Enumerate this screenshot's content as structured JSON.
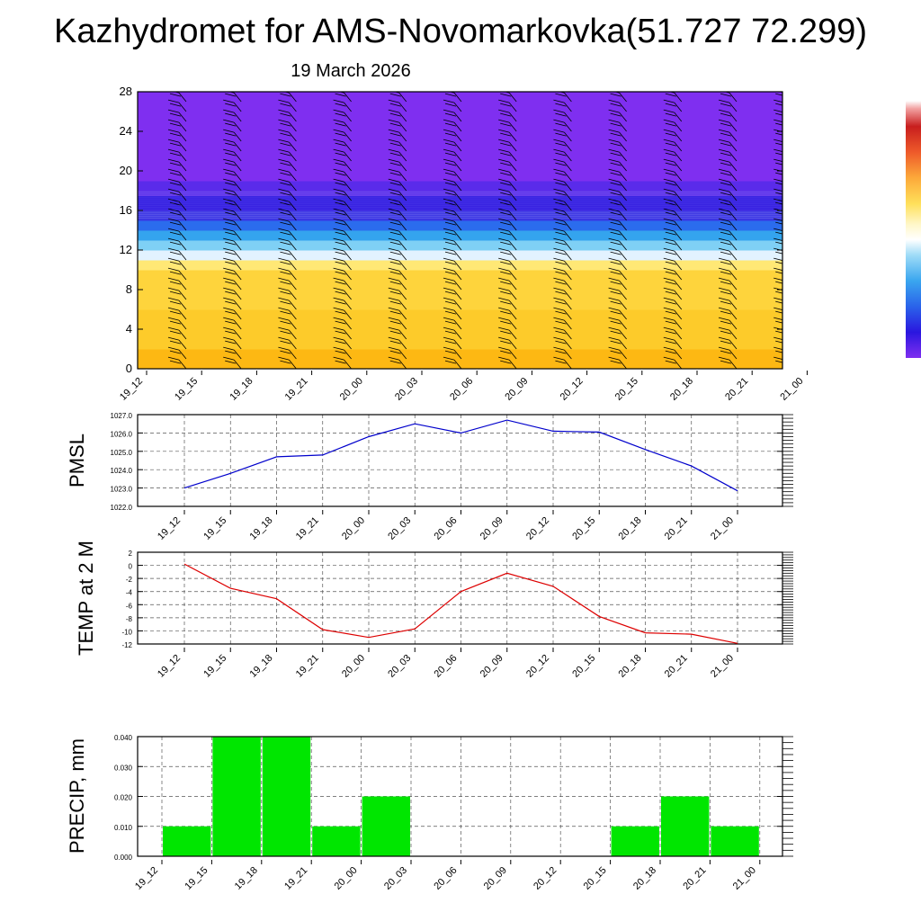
{
  "page": {
    "title": "Kazhydromet for AMS-Novomarkovka(51.727 72.299)",
    "date": "19 March 2026"
  },
  "colors": {
    "pmsl_line": "#0000cc",
    "temp_line": "#dd0000",
    "precip_bar": "#00e600",
    "grid": "#555555"
  },
  "chart_data": [
    {
      "id": "cross_section",
      "type": "heatmap",
      "title": "",
      "xlabel": "",
      "ylabel": "",
      "x_ticks": [
        "19_12",
        "19_15",
        "19_18",
        "19_21",
        "20_00",
        "20_03",
        "20_06",
        "20_09",
        "20_12",
        "20_15",
        "20_18",
        "20_21",
        "21_00"
      ],
      "y_ticks": [
        0,
        4,
        8,
        12,
        16,
        20,
        24,
        28
      ],
      "ylim": [
        0,
        28
      ],
      "color_bands": [
        {
          "from": 0,
          "to": 2,
          "color": "#fdb813"
        },
        {
          "from": 2,
          "to": 6,
          "color": "#fdcb2a"
        },
        {
          "from": 6,
          "to": 10,
          "color": "#fed43c"
        },
        {
          "from": 10,
          "to": 11,
          "color": "#ffe875"
        },
        {
          "from": 11,
          "to": 12,
          "color": "#e2f2ff"
        },
        {
          "from": 12,
          "to": 13,
          "color": "#7fd0f5"
        },
        {
          "from": 13,
          "to": 14,
          "color": "#34a4ee"
        },
        {
          "from": 14,
          "to": 15,
          "color": "#2b6ced"
        },
        {
          "from": 15,
          "to": 16,
          "color": "#3a35e3"
        },
        {
          "from": 16,
          "to": 17.5,
          "color": "#2a12e0"
        },
        {
          "from": 17.5,
          "to": 19,
          "color": "#5a2bea"
        },
        {
          "from": 19,
          "to": 28,
          "color": "#7f2ff0"
        }
      ],
      "wind_barbs": "shown at every time step and every 1 km level"
    },
    {
      "id": "pmsl",
      "type": "line",
      "ylabel": "PMSL",
      "categories": [
        "19_12",
        "19_15",
        "19_18",
        "19_21",
        "20_00",
        "20_03",
        "20_06",
        "20_09",
        "20_12",
        "20_15",
        "20_18",
        "20_21",
        "21_00"
      ],
      "values": [
        1023.0,
        1023.8,
        1024.7,
        1024.8,
        1025.8,
        1026.5,
        1026.0,
        1026.7,
        1026.1,
        1026.05,
        1025.1,
        1024.2,
        1022.85
      ],
      "ylim": [
        1022.0,
        1027.0
      ],
      "y_ticks": [
        "1022.0",
        "1023.0",
        "1024.0",
        "1025.0",
        "1026.0",
        "1027.0"
      ],
      "y_tick_values": [
        1022,
        1023,
        1024,
        1025,
        1026,
        1027
      ]
    },
    {
      "id": "temp",
      "type": "line",
      "ylabel": "TEMP at 2 M",
      "categories": [
        "19_12",
        "19_15",
        "19_18",
        "19_21",
        "20_00",
        "20_03",
        "20_06",
        "20_09",
        "20_12",
        "20_15",
        "20_18",
        "20_21",
        "21_00"
      ],
      "values": [
        0.2,
        -3.5,
        -5.1,
        -9.8,
        -11.0,
        -9.7,
        -4.0,
        -1.2,
        -3.2,
        -7.8,
        -10.3,
        -10.5,
        -11.9
      ],
      "ylim": [
        -12,
        2
      ],
      "y_ticks": [
        "2",
        "0",
        "-2",
        "-4",
        "-6",
        "-8",
        "-10",
        "-12"
      ],
      "y_tick_values": [
        2,
        0,
        -2,
        -4,
        -6,
        -8,
        -10,
        -12
      ]
    },
    {
      "id": "precip",
      "type": "bar",
      "ylabel": "PRECIP, mm",
      "categories": [
        "19_12",
        "19_15",
        "19_18",
        "19_21",
        "20_00",
        "20_03",
        "20_06",
        "20_09",
        "20_12",
        "20_15",
        "20_18",
        "20_21",
        "21_00"
      ],
      "values": [
        0,
        0.01,
        0.04,
        0.04,
        0.01,
        0.02,
        0,
        0,
        0,
        0,
        0.01,
        0.02,
        0.01
      ],
      "ylim": [
        0,
        0.04
      ],
      "y_ticks": [
        "0.000",
        "0.010",
        "0.020",
        "0.030",
        "0.040"
      ],
      "y_tick_values": [
        0,
        0.01,
        0.02,
        0.03,
        0.04
      ]
    }
  ]
}
